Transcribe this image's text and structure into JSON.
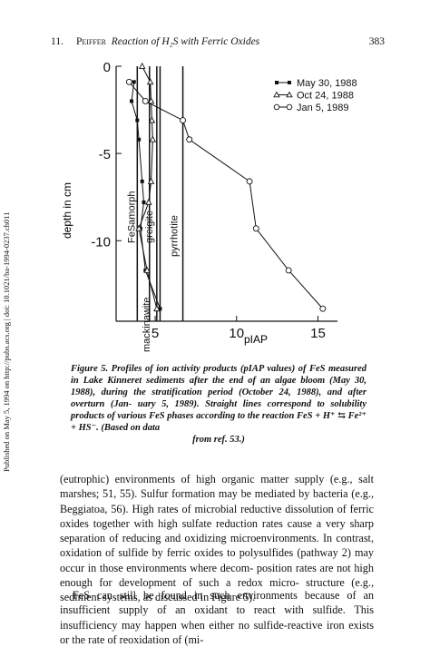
{
  "header": {
    "chapter": "11.",
    "author": "Peiffer",
    "title": "Reaction of H₂S with Ferric Oxides",
    "page": "383"
  },
  "side_note": "Published on May 5, 1994 on http://pubs.acs.org | doi: 10.1021/ba-1994-0237.ch011",
  "chart_data": {
    "type": "line",
    "xlabel": "pIAP",
    "ylabel": "depth in cm",
    "xlim": [
      2.6,
      16.2
    ],
    "ylim": [
      0,
      -14.2
    ],
    "xticks": [
      "5",
      "10",
      "15"
    ],
    "yticks": [
      "0",
      "-5",
      "-10"
    ],
    "grid": false,
    "legend_position": "top-right",
    "series": [
      {
        "name": "May 30, 1988",
        "marker": "square",
        "points": [
          [
            3.7,
            -0.9
          ],
          [
            3.55,
            -2
          ],
          [
            3.9,
            -3.1
          ],
          [
            4.0,
            -4.2
          ],
          [
            4.2,
            -6.6
          ],
          [
            4.3,
            -7.8
          ],
          [
            4.1,
            -9.3
          ],
          [
            4.4,
            -11.7
          ],
          [
            5.3,
            -13.9
          ]
        ]
      },
      {
        "name": "Oct 24, 1988",
        "marker": "triangle",
        "points": [
          [
            4.2,
            0
          ],
          [
            4.7,
            -0.9
          ],
          [
            4.75,
            -2
          ],
          [
            4.8,
            -3.1
          ],
          [
            4.85,
            -4.2
          ],
          [
            4.75,
            -6.6
          ],
          [
            4.6,
            -7.8
          ],
          [
            4.0,
            -9.3
          ],
          [
            4.5,
            -11.7
          ],
          [
            5.1,
            -13.9
          ]
        ]
      },
      {
        "name": "Jan 5, 1989",
        "marker": "circle",
        "points": [
          [
            3.4,
            -0.9
          ],
          [
            4.4,
            -2
          ],
          [
            6.7,
            -3.1
          ],
          [
            7.1,
            -4.2
          ],
          [
            10.8,
            -6.6
          ],
          [
            11.2,
            -9.3
          ],
          [
            13.2,
            -11.7
          ],
          [
            15.3,
            -13.9
          ]
        ]
      }
    ],
    "reference_lines": [
      {
        "x": 3.9,
        "label": "FeSamorph"
      },
      {
        "x": 4.65,
        "label": "mackinawite"
      },
      {
        "x": 5.1,
        "label": "greigite"
      },
      {
        "x": 6.7,
        "label": "pyrrhotite"
      },
      {
        "x": 5.3,
        "label": ""
      }
    ],
    "colors": {
      "ink": "#111111"
    }
  },
  "caption": {
    "label": "Figure 5.",
    "lines": [
      "Profiles of ion activity products (pIAP values) of FeS measured in",
      "Lake Kinneret sediments after the end of an algae bloom (May 30, 1988),",
      "during the stratification period (October 24, 1988), and after overturn (Jan-",
      "uary 5, 1989). Straight lines correspond to solubility products of various FeS",
      "phases according to the reaction FeS + H⁺ ⇆ Fe²⁺ + HS⁻. (Based on data"
    ],
    "source": "from ref. 53.)"
  },
  "body": {
    "p1": [
      "(eutrophic) environments of high organic matter supply (e.g., salt marshes;",
      "51, 55). Sulfur formation may be mediated by bacteria (e.g., Beggiatoa, 56).",
      "High rates of microbial reductive dissolution of ferric oxides together with",
      "high sulfate reduction rates cause a very sharp separation of reducing and",
      "oxidizing microenvironments. In contrast, oxidation of sulfide by ferric oxides",
      "to polysulfides (pathway 2) may occur in those environments where decom-",
      "position rates are not high enough for development of such a redox micro-",
      "structure (e.g., sediment systems, as discussed in Figure 5)."
    ],
    "p2": [
      "FeS can still be found in such environments because of an insufficient",
      "supply of an oxidant to react with sulfide. This insufficiency may happen",
      "when either no sulfide-reactive iron exists or the rate of reoxidation of (mi-"
    ]
  }
}
